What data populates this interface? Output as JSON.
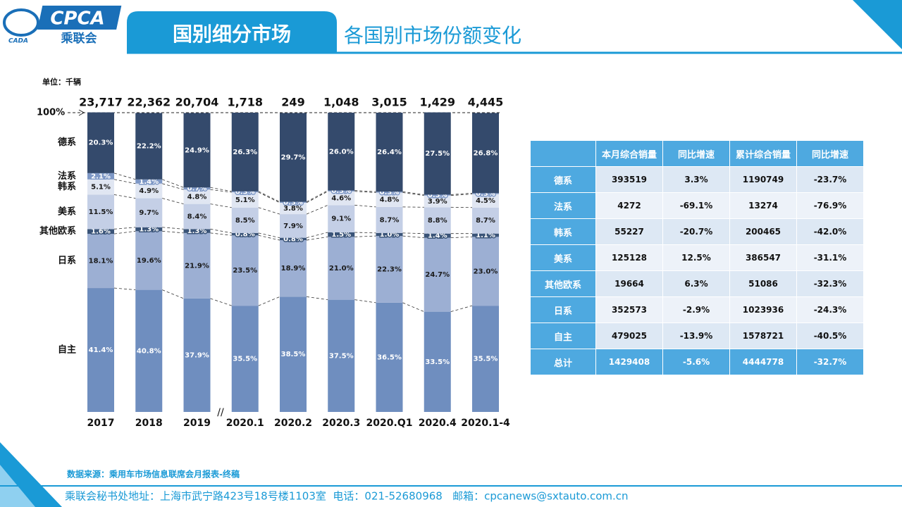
{
  "header": {
    "logo_text": "CPCA",
    "logo_subtext": "乘联会",
    "logo_mark": "CADA",
    "section": "国别细分市场",
    "title": "各国别市场份额变化"
  },
  "chart_data": {
    "type": "stacked-bar",
    "unit": "单位：千辆",
    "categories": [
      "2017",
      "2018",
      "2019",
      "2020.1",
      "2020.2",
      "2020.3",
      "2020.Q1",
      "2020.4",
      "2020.1-4"
    ],
    "ylim": [
      0,
      100
    ],
    "yticks": [
      {
        "value": 100,
        "label": "100%"
      }
    ],
    "totals": {
      "values": [
        23717,
        22362,
        20704,
        1718,
        249,
        1048,
        3015,
        1429,
        4445
      ],
      "value_labels": [
        "23,717",
        "22,362",
        "20,704",
        "1,718",
        "249",
        "1,048",
        "3,015",
        "1,429",
        "4,445"
      ]
    },
    "series": [
      {
        "name": "自主",
        "color": "#6f8ebf",
        "label_color": "#ffffff",
        "values": [
          41.4,
          40.8,
          37.9,
          35.5,
          38.5,
          37.5,
          36.5,
          33.5,
          35.5
        ],
        "value_labels": [
          "41.4%",
          "40.8%",
          "37.9%",
          "35.5%",
          "38.5%",
          "37.5%",
          "36.5%",
          "33.5%",
          "35.5%"
        ]
      },
      {
        "name": "日系",
        "color": "#9cafd3",
        "label_color": "#1a1a1a",
        "values": [
          18.1,
          19.6,
          21.9,
          23.5,
          18.9,
          21.0,
          22.3,
          24.7,
          23.0
        ],
        "value_labels": [
          "18.1%",
          "19.6%",
          "21.9%",
          "23.5%",
          "18.9%",
          "21.0%",
          "22.3%",
          "24.7%",
          "23.0%"
        ]
      },
      {
        "name": "其他欧系",
        "color": "#3a5478",
        "label_color": "#ffffff",
        "values": [
          1.6,
          1.3,
          1.3,
          0.8,
          0.8,
          1.5,
          1.0,
          1.4,
          1.1
        ],
        "value_labels": [
          "1.6%",
          "1.3%",
          "1.3%",
          "0.8%",
          "0.8%",
          "1.5%",
          "1.0%",
          "1.4%",
          "1.1%"
        ]
      },
      {
        "name": "美系",
        "color": "#c4cfe6",
        "label_color": "#1a1a1a",
        "values": [
          11.5,
          9.7,
          8.4,
          8.5,
          7.9,
          9.1,
          8.7,
          8.8,
          8.7
        ],
        "value_labels": [
          "11.5%",
          "9.7%",
          "8.4%",
          "8.5%",
          "7.9%",
          "9.1%",
          "8.7%",
          "8.8%",
          "8.7%"
        ]
      },
      {
        "name": "韩系",
        "color": "#e0e6f2",
        "label_color": "#1a1a1a",
        "values": [
          5.1,
          4.9,
          4.8,
          5.1,
          3.8,
          4.6,
          4.8,
          3.9,
          4.5
        ],
        "value_labels": [
          "5.1%",
          "4.9%",
          "4.8%",
          "5.1%",
          "3.8%",
          "4.6%",
          "4.8%",
          "3.9%",
          "4.5%"
        ]
      },
      {
        "name": "法系",
        "color": "#7e98c6",
        "label_color": "#ffffff",
        "values": [
          2.1,
          1.4,
          0.7,
          0.3,
          0.3,
          0.3,
          0.3,
          0.3,
          0.3
        ],
        "value_labels": [
          "2.1%",
          "1.4%",
          "0.7%",
          "0.3%",
          "0.3%",
          "0.3%",
          "0.3%",
          "0.3%",
          "0.3%"
        ]
      },
      {
        "name": "德系",
        "color": "#344a6c",
        "label_color": "#ffffff",
        "values": [
          20.3,
          22.2,
          24.9,
          26.3,
          29.7,
          26.0,
          26.4,
          27.5,
          26.8
        ],
        "value_labels": [
          "20.3%",
          "22.2%",
          "24.9%",
          "26.3%",
          "29.7%",
          "26.0%",
          "26.4%",
          "27.5%",
          "26.8%"
        ]
      }
    ]
  },
  "table": {
    "columns": [
      "本月综合销量",
      "同比增速",
      "累计综合销量",
      "同比增速"
    ],
    "rows": [
      [
        "德系",
        "393519",
        "3.3%",
        "1190749",
        "-23.7%"
      ],
      [
        "法系",
        "4272",
        "-69.1%",
        "13274",
        "-76.9%"
      ],
      [
        "韩系",
        "55227",
        "-20.7%",
        "200465",
        "-42.0%"
      ],
      [
        "美系",
        "125128",
        "12.5%",
        "386547",
        "-31.1%"
      ],
      [
        "其他欧系",
        "19664",
        "6.3%",
        "51086",
        "-32.3%"
      ],
      [
        "日系",
        "352573",
        "-2.9%",
        "1023936",
        "-24.3%"
      ],
      [
        "自主",
        "479025",
        "-13.9%",
        "1578721",
        "-40.5%"
      ],
      [
        "总计",
        "1429408",
        "-5.6%",
        "4444778",
        "-32.7%"
      ]
    ]
  },
  "footer": {
    "source": "数据来源：乘用车市场信息联席会月报表-终稿",
    "address": "乘联会秘书处地址：上海市武宁路423号18号楼1103室  电话：021-52680968   邮箱：cpcanews@sxtauto.com.cn"
  }
}
